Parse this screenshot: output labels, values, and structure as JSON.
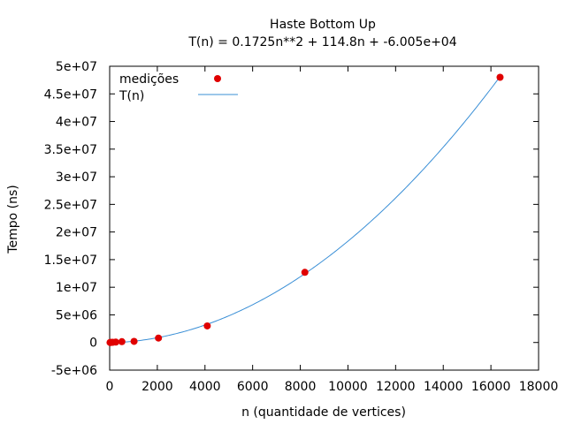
{
  "chart_data": {
    "type": "scatter",
    "title": "Haste Bottom Up",
    "subtitle": "T(n) = 0.1725n**2 + 114.8n + -6.005e+04",
    "xlabel": "n (quantidade de vertices)",
    "ylabel": "Tempo (ns)",
    "xlim": [
      0,
      18000
    ],
    "ylim": [
      -5000000,
      50000000
    ],
    "x_ticks": [
      0,
      2000,
      4000,
      6000,
      8000,
      10000,
      12000,
      14000,
      16000,
      18000
    ],
    "x_tick_labels": [
      "0",
      "2000",
      "4000",
      "6000",
      "8000",
      "10000",
      "12000",
      "14000",
      "16000",
      "18000"
    ],
    "y_ticks": [
      -5000000,
      0,
      5000000,
      10000000,
      15000000,
      20000000,
      25000000,
      30000000,
      35000000,
      40000000,
      45000000,
      50000000
    ],
    "y_tick_labels": [
      "-5e+06",
      "0",
      "5e+06",
      "1e+07",
      "1.5e+07",
      "2e+07",
      "2.5e+07",
      "3e+07",
      "3.5e+07",
      "4e+07",
      "4.5e+07",
      "5e+07"
    ],
    "grid": false,
    "legend_position": "top-left",
    "series": [
      {
        "name": "medições",
        "kind": "scatter",
        "color": "#e00000",
        "x": [
          16,
          32,
          64,
          128,
          256,
          512,
          1024,
          2048,
          4096,
          8192,
          16384
        ],
        "y": [
          2000,
          5000,
          12000,
          30000,
          70000,
          150000,
          200000,
          800000,
          3000000,
          12700000,
          48000000
        ]
      },
      {
        "name": "T(n)",
        "kind": "line",
        "color": "#3a8fd6",
        "formula": {
          "a": 0.1725,
          "b": 114.8,
          "c": -60050
        },
        "x_range": [
          0,
          16384
        ]
      }
    ]
  }
}
